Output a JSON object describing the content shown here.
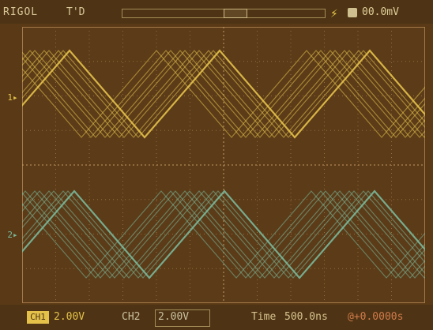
{
  "header": {
    "brand": "RIGOL",
    "status": "T'D",
    "trigger_level": "00.0mV"
  },
  "channels": {
    "ch1_marker": "1▸",
    "ch2_marker": "2▸"
  },
  "footer": {
    "ch1_tag": "CH1",
    "ch1_scale": "2.00V",
    "ch2_label": "CH2",
    "ch2_scale": "2.00V",
    "time_label": "Time",
    "time_value": "500.0ns",
    "trigger_offset": "@+0.0000s"
  },
  "colors": {
    "ch1": "#e4c24a",
    "ch2": "#7ab89a",
    "grid": "#a37a4a",
    "screen": "#5b3b18"
  }
}
